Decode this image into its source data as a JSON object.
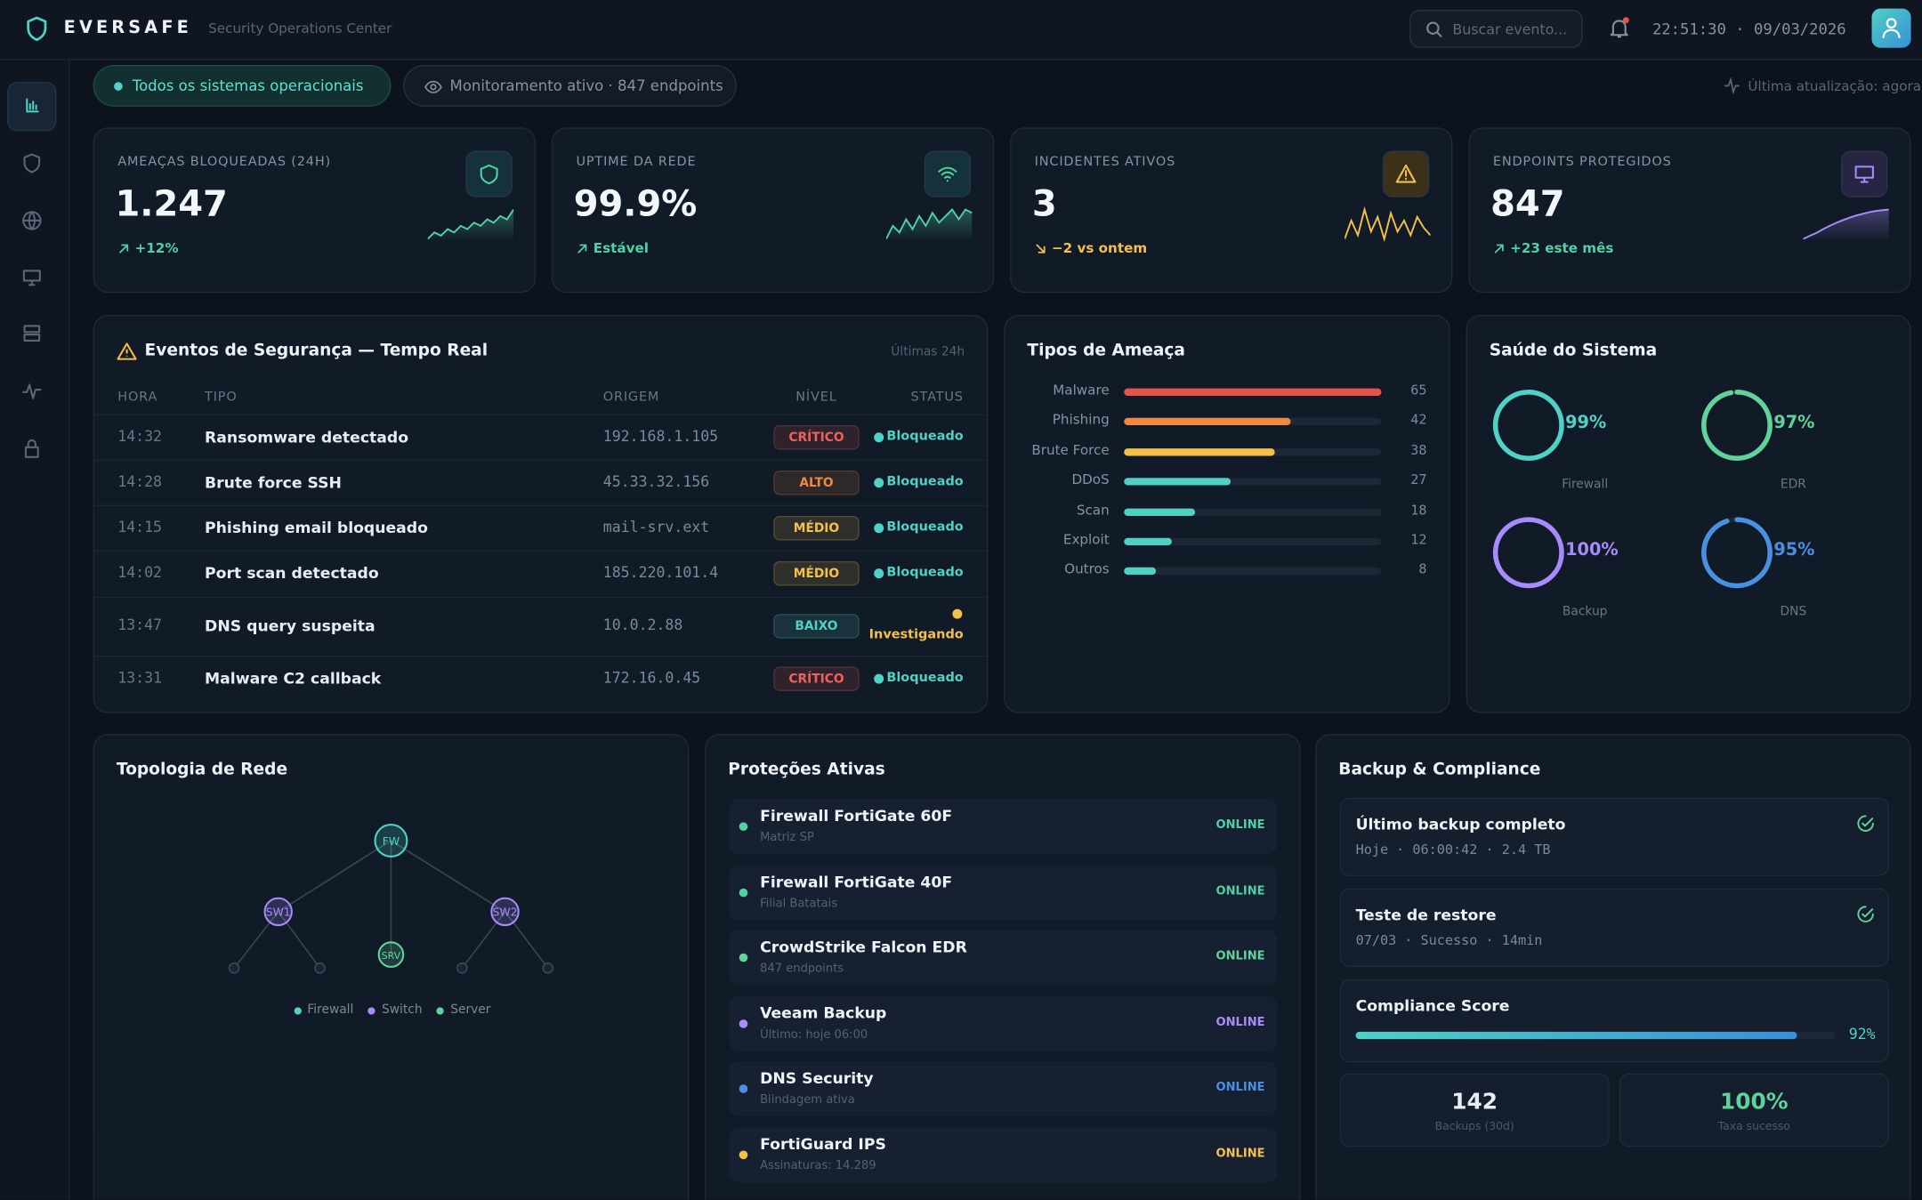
{
  "header": {
    "brand": "EVERSAFE",
    "subtitle": "Security Operations Center",
    "search_placeholder": "Buscar evento...",
    "datetime": "22:51:30 · 09/03/2026"
  },
  "status": {
    "operational": "Todos os sistemas operacionais",
    "monitoring": "Monitoramento ativo · 847 endpoints",
    "last_update": "Última atualização: agora"
  },
  "kpis": [
    {
      "label": "AMEAÇAS BLOQUEADAS (24H)",
      "value": "1.247",
      "delta": "+12%",
      "color": "#4fd1a5",
      "delta_color": "#4fd1a5",
      "spark": [
        4,
        6,
        5,
        7,
        6,
        8,
        7,
        9,
        8,
        10,
        9,
        11,
        10,
        13
      ]
    },
    {
      "label": "UPTIME DA REDE",
      "value": "99.9%",
      "delta": "Estável",
      "color": "#4fd1a5",
      "delta_color": "#4fd1a5",
      "spark": [
        3,
        7,
        5,
        9,
        6,
        10,
        7,
        11,
        8,
        10,
        12,
        9,
        12,
        11
      ]
    },
    {
      "label": "INCIDENTES ATIVOS",
      "value": "3",
      "delta": "−2 vs ontem",
      "color": "#f5c04a",
      "delta_color": "#f5c04a",
      "spark": [
        4,
        9,
        5,
        12,
        6,
        10,
        4,
        11,
        6,
        9,
        5,
        10,
        7,
        5
      ]
    },
    {
      "label": "ENDPOINTS PROTEGIDOS",
      "value": "847",
      "delta": "+23 este mês",
      "color": "#a78bfa",
      "delta_color": "#4fd1a5",
      "spark": [
        1,
        2,
        3,
        4.2,
        5.3,
        6.3,
        7.2,
        8,
        8.7,
        9.3,
        9.8,
        10.2,
        10.5,
        10.7
      ]
    }
  ],
  "events": {
    "title": "Eventos de Segurança — Tempo Real",
    "range": "Últimas 24h",
    "columns": [
      "HORA",
      "TIPO",
      "ORIGEM",
      "NÍVEL",
      "STATUS"
    ],
    "rows": [
      {
        "time": "14:32",
        "type": "Ransomware detectado",
        "origin": "192.168.1.105",
        "level": "CRÍTICO",
        "status": "Bloqueado",
        "level_color": "#f0605a",
        "status_color": "#4fd1c5"
      },
      {
        "time": "14:28",
        "type": "Brute force SSH",
        "origin": "45.33.32.156",
        "level": "ALTO",
        "status": "Bloqueado",
        "level_color": "#f0883e",
        "status_color": "#4fd1c5"
      },
      {
        "time": "14:15",
        "type": "Phishing email bloqueado",
        "origin": "mail-srv.ext",
        "level": "MÉDIO",
        "status": "Bloqueado",
        "level_color": "#f5c04a",
        "status_color": "#4fd1c5"
      },
      {
        "time": "14:02",
        "type": "Port scan detectado",
        "origin": "185.220.101.4",
        "level": "MÉDIO",
        "status": "Bloqueado",
        "level_color": "#f5c04a",
        "status_color": "#4fd1c5"
      },
      {
        "time": "13:47",
        "type": "DNS query suspeita",
        "origin": "10.0.2.88",
        "level": "BAIXO",
        "status": "Investigando",
        "level_color": "#4fd1c5",
        "status_color": "#f5c04a"
      },
      {
        "time": "13:31",
        "type": "Malware C2 callback",
        "origin": "172.16.0.45",
        "level": "CRÍTICO",
        "status": "Bloqueado",
        "level_color": "#f0605a",
        "status_color": "#4fd1c5"
      }
    ]
  },
  "threats": {
    "title": "Tipos de Ameaça",
    "items": [
      {
        "name": "Malware",
        "value": 65,
        "color": "#e5534b"
      },
      {
        "name": "Phishing",
        "value": 42,
        "color": "#f0883e"
      },
      {
        "name": "Brute Force",
        "value": 38,
        "color": "#f5c04a"
      },
      {
        "name": "DDoS",
        "value": 27,
        "color": "#4fd1c5"
      },
      {
        "name": "Scan",
        "value": 18,
        "color": "#4fd1c5"
      },
      {
        "name": "Exploit",
        "value": 12,
        "color": "#4fd1c5"
      },
      {
        "name": "Outros",
        "value": 8,
        "color": "#4fd1c5"
      }
    ]
  },
  "health": {
    "title": "Saúde do Sistema",
    "items": [
      {
        "name": "Firewall",
        "value": 99,
        "label": "99%",
        "color": "#4fd1c5"
      },
      {
        "name": "EDR",
        "value": 97,
        "label": "97%",
        "color": "#5fd39a"
      },
      {
        "name": "Backup",
        "value": 100,
        "label": "100%",
        "color": "#a78bfa"
      },
      {
        "name": "DNS",
        "value": 95,
        "label": "95%",
        "color": "#4a90e2"
      }
    ]
  },
  "topology": {
    "title": "Topologia de Rede",
    "nodes": [
      "FW",
      "SW1",
      "SW2",
      "SRV"
    ],
    "legend": [
      {
        "name": "Firewall",
        "color": "#4fd1c5"
      },
      {
        "name": "Switch",
        "color": "#a78bfa"
      },
      {
        "name": "Server",
        "color": "#5fd39a"
      }
    ]
  },
  "protections": {
    "title": "Proteções Ativas",
    "items": [
      {
        "name": "Firewall FortiGate 60F",
        "sub": "Matriz SP",
        "status": "ONLINE",
        "color": "#4fd1a5"
      },
      {
        "name": "Firewall FortiGate 40F",
        "sub": "Filial Batatais",
        "status": "ONLINE",
        "color": "#4fd1a5"
      },
      {
        "name": "CrowdStrike Falcon EDR",
        "sub": "847 endpoints",
        "status": "ONLINE",
        "color": "#5fd39a"
      },
      {
        "name": "Veeam Backup",
        "sub": "Último: hoje 06:00",
        "status": "ONLINE",
        "color": "#a78bfa"
      },
      {
        "name": "DNS Security",
        "sub": "Blindagem ativa",
        "status": "ONLINE",
        "color": "#4a90e2"
      },
      {
        "name": "FortiGuard IPS",
        "sub": "Assinaturas: 14.289",
        "status": "ONLINE",
        "color": "#f5c04a"
      }
    ]
  },
  "backup": {
    "title": "Backup & Compliance",
    "items": [
      {
        "title": "Último backup completo",
        "detail": "Hoje · 06:00:42 · 2.4 TB"
      },
      {
        "title": "Teste de restore",
        "detail": "07/03 · Sucesso · 14min"
      }
    ],
    "compliance": {
      "label": "Compliance Score",
      "value": 92,
      "value_label": "92%"
    },
    "stats": [
      {
        "value": "142",
        "label": "Backups (30d)",
        "color": "#e6edf3"
      },
      {
        "value": "100%",
        "label": "Taxa sucesso",
        "color": "#5fd39a"
      }
    ]
  }
}
